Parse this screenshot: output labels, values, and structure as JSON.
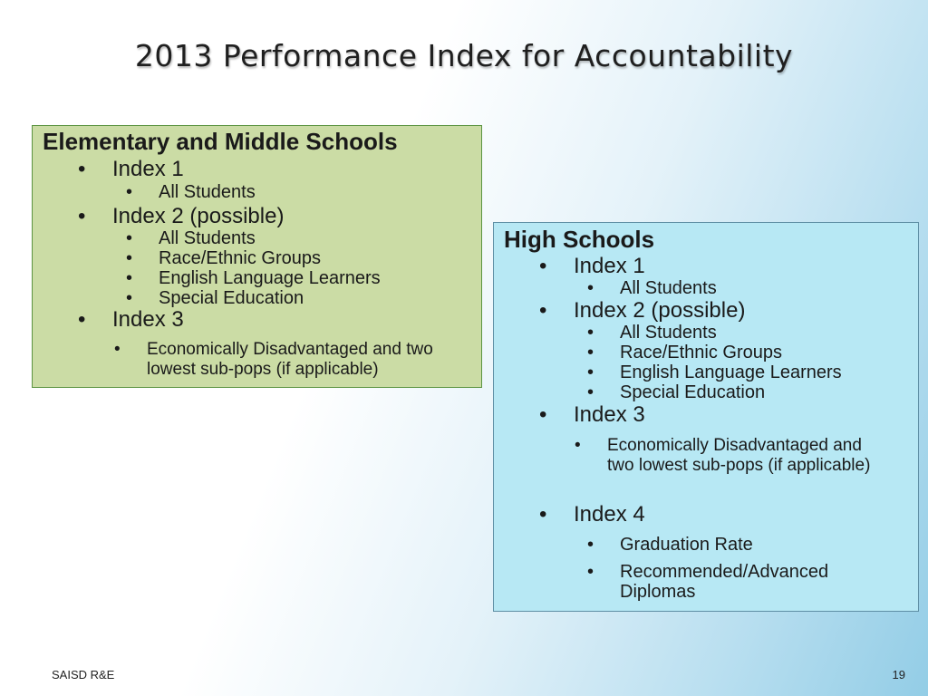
{
  "slide": {
    "title": "2013 Performance Index for Accountability",
    "bullet": "•"
  },
  "elementary": {
    "heading": "Elementary and Middle Schools",
    "index1": "Index 1",
    "index1_items": [
      "All Students"
    ],
    "index2": "Index 2 (possible)",
    "index2_items": [
      "All Students",
      "Race/Ethnic Groups",
      "English Language Learners",
      "Special Education"
    ],
    "index3": "Index 3",
    "index3_items": [
      "Economically Disadvantaged and two lowest sub-pops (if applicable)"
    ]
  },
  "high": {
    "heading": "High Schools",
    "index1": "Index 1",
    "index1_items": [
      "All Students"
    ],
    "index2": "Index 2 (possible)",
    "index2_items": [
      "All Students",
      "Race/Ethnic Groups",
      "English Language Learners",
      "Special Education"
    ],
    "index3": "Index 3",
    "index3_items": [
      "Economically Disadvantaged and two lowest sub-pops (if applicable)"
    ],
    "index4": "Index 4",
    "index4_items": [
      "Graduation Rate",
      "Recommended/Advanced Diplomas"
    ]
  },
  "footer": {
    "left": "SAISD R&E",
    "page_number": "19"
  },
  "colors": {
    "elementary_box": "#cbdca5",
    "high_box": "#b7e8f4"
  }
}
